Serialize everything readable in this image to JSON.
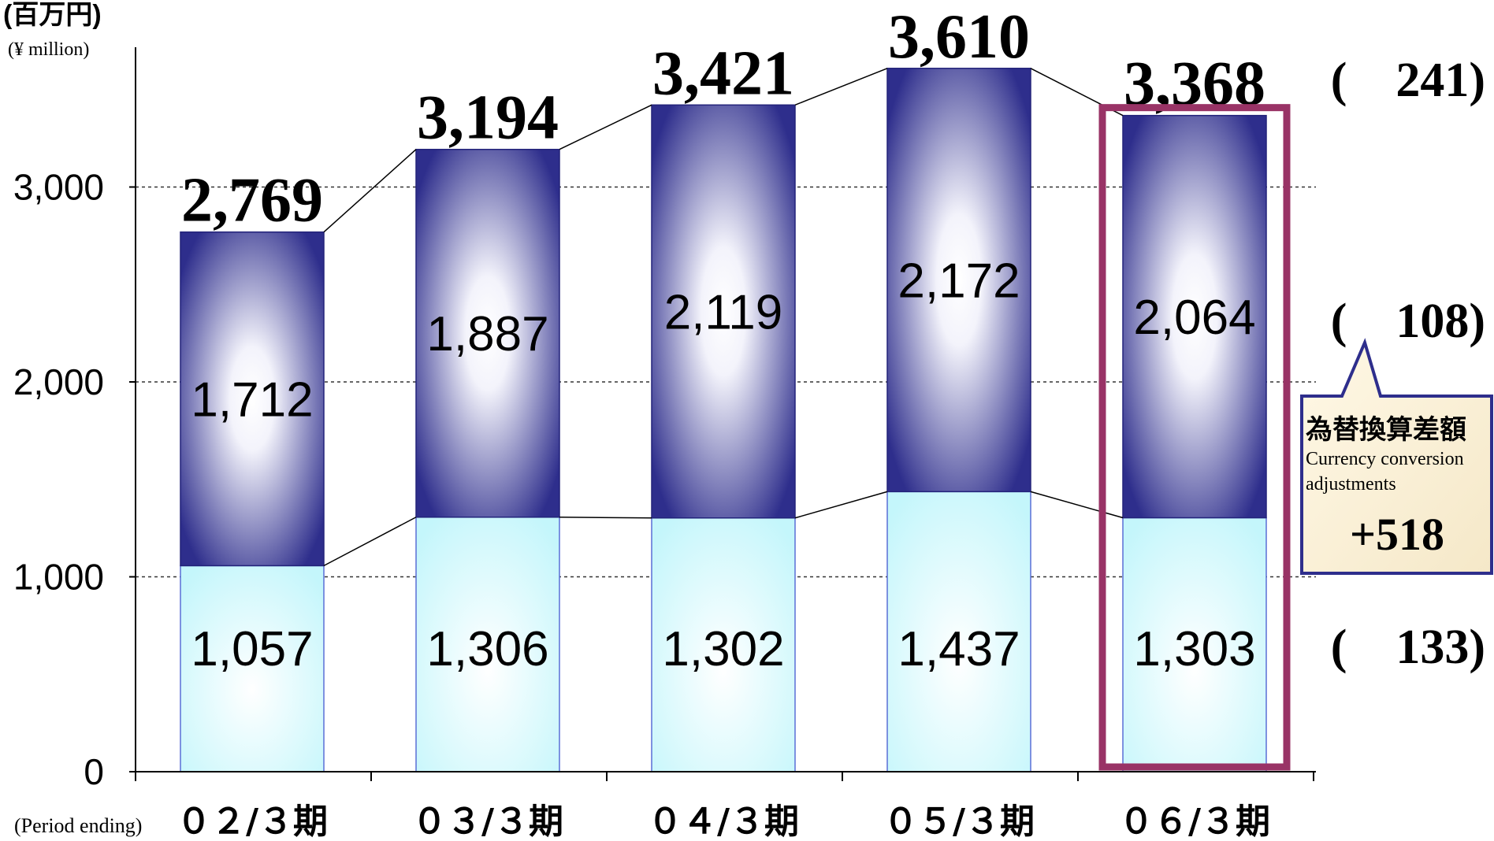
{
  "chart_data": {
    "type": "bar",
    "stacked": true,
    "unit_ja": "(百万円)",
    "unit_en": "(¥ million)",
    "x_caption": "(Period ending)",
    "categories": [
      "０２/３期",
      "０３/３期",
      "０４/３期",
      "０５/３期",
      "０６/３期"
    ],
    "series": [
      {
        "values": [
          1057,
          1306,
          1302,
          1437,
          1303
        ],
        "color": "#d8fbff"
      },
      {
        "values": [
          1712,
          1887,
          2119,
          2172,
          2064
        ],
        "color": "#2e2e8c"
      }
    ],
    "totals": [
      2769,
      3194,
      3421,
      3610,
      3368
    ],
    "total_labels": [
      "2,769",
      "3,194",
      "3,421",
      "3,610",
      "3,368"
    ],
    "upper_labels": [
      "1,712",
      "1,887",
      "2,119",
      "2,172",
      "2,064"
    ],
    "lower_labels": [
      "1,057",
      "1,306",
      "1,302",
      "1,437",
      "1,303"
    ],
    "yticks": [
      0,
      1000,
      2000,
      3000
    ],
    "ytick_labels": [
      "0",
      "1,000",
      "2,000",
      "3,000"
    ],
    "ylim": [
      0,
      3900
    ],
    "grid": true,
    "highlight_index": 4,
    "change_labels": {
      "total": "(　241)",
      "upper": "(　108)",
      "lower": "(　133)"
    },
    "callout": {
      "title_ja": "為替換算差額",
      "title_en_1": "Currency conversion",
      "title_en_2": "adjustments",
      "value": "+518"
    },
    "colors": {
      "dark": "#2e2e8c",
      "light_blue": "#d8fbff",
      "highlight": "#993366",
      "callout_border": "#2e2e8c",
      "callout_fill": "#fff6e0"
    }
  }
}
